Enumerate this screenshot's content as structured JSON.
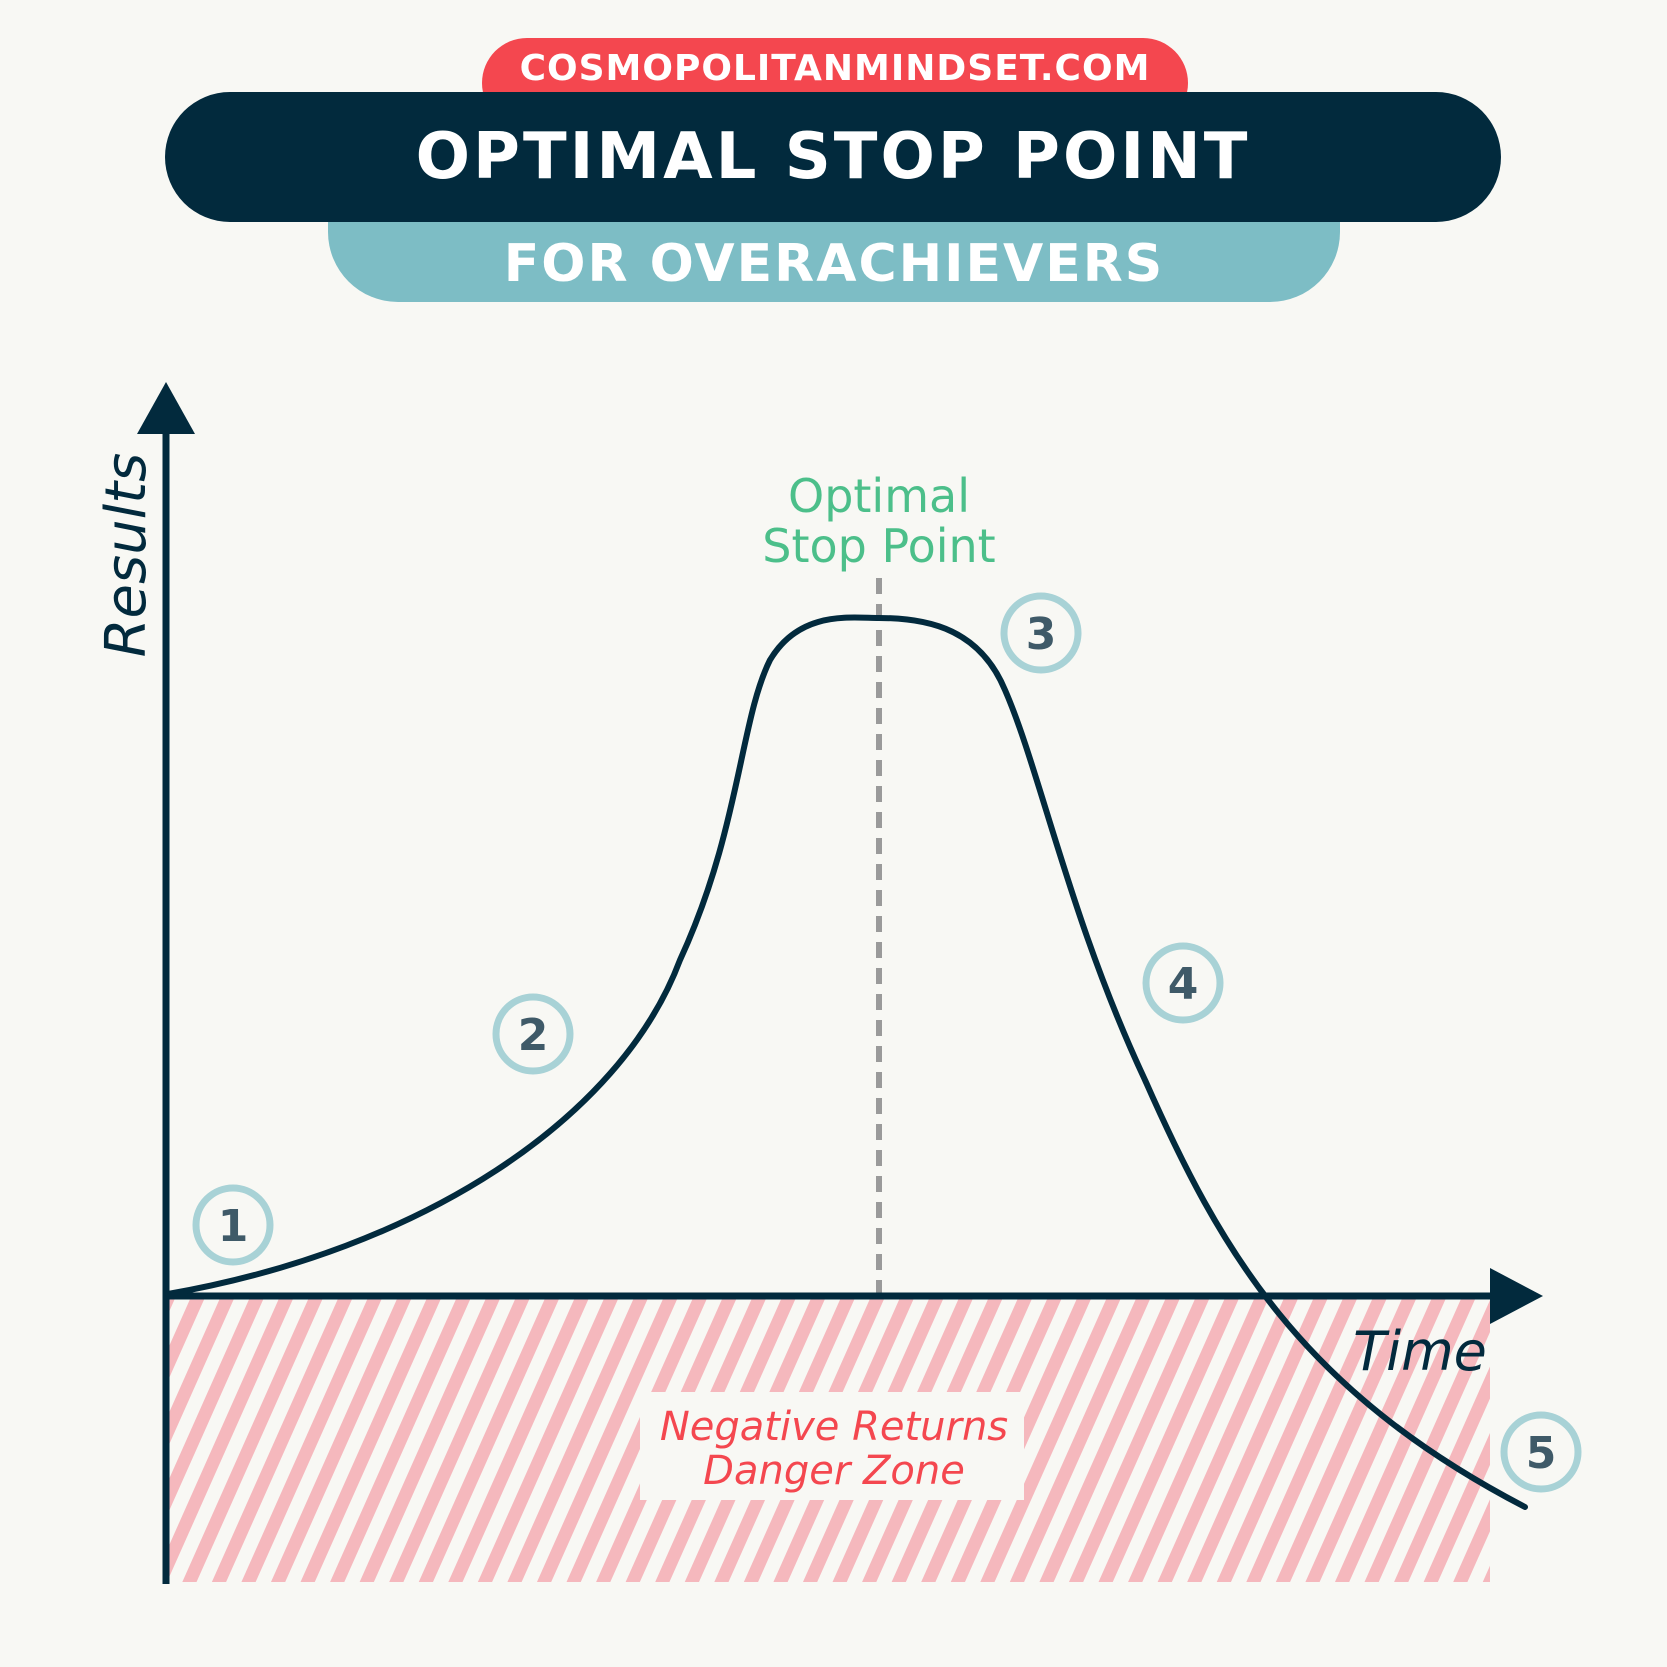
{
  "header": {
    "site": "COSMOPOLITANMINDSET.COM",
    "title": "OPTIMAL STOP POINT",
    "subtitle": "FOR OVERACHIEVERS"
  },
  "axes": {
    "y_label": "Results",
    "x_label": "Time"
  },
  "peak_label": {
    "line1": "Optimal",
    "line2": "Stop Point"
  },
  "zone_label": {
    "line1": "Negative Returns",
    "line2": "Danger Zone"
  },
  "stages": [
    "1",
    "2",
    "3",
    "4",
    "5"
  ],
  "colors": {
    "navy": "#022a3d",
    "red": "#f4474f",
    "teal": "#7dbdc5",
    "green": "#4cbf8a",
    "stripe": "#f5b8bd",
    "badge_text": "#3f5a68",
    "dashed": "#9a9a9a"
  }
}
